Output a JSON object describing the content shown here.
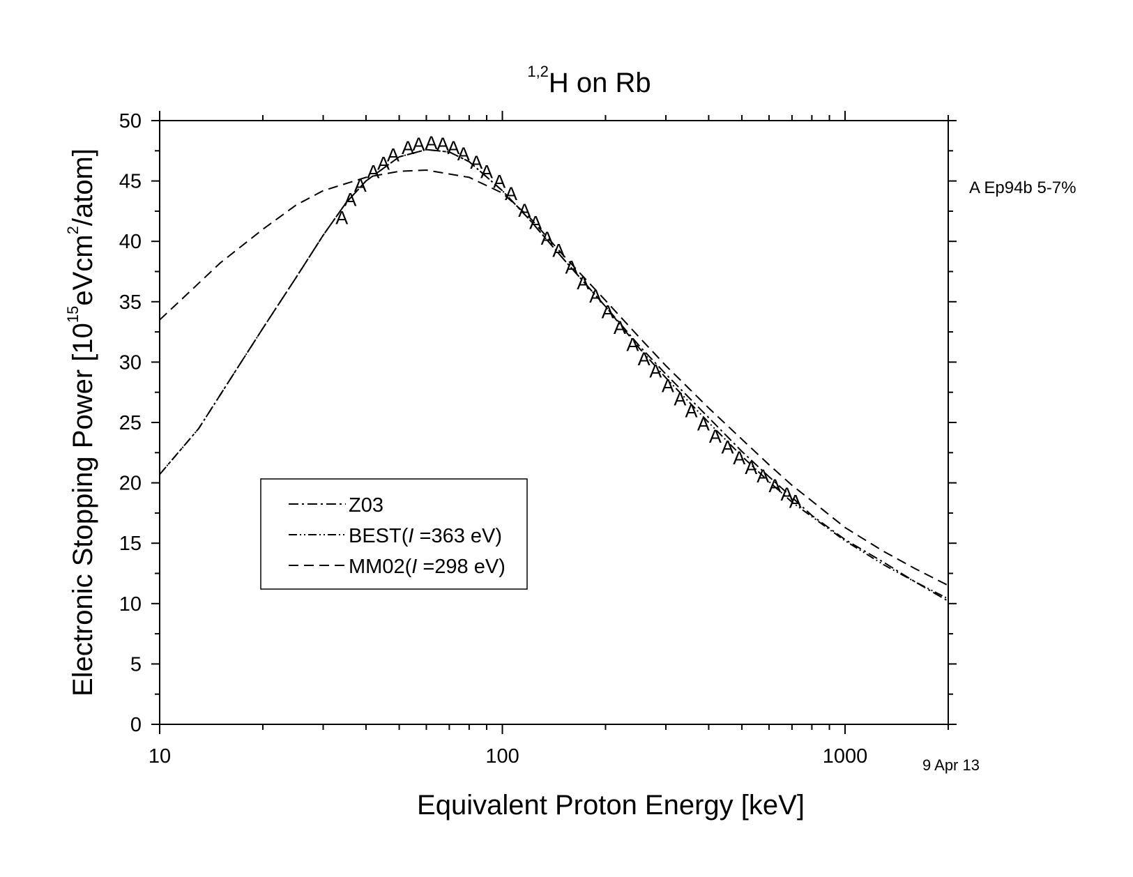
{
  "chart_data": {
    "type": "line",
    "title": {
      "sup": "1,2",
      "main": "H on Rb"
    },
    "xlabel": "Equivalent Proton Energy [keV]",
    "ylabel": {
      "before": "Electronic Stopping Power [10",
      "sup1": "15",
      "middle": "eVcm",
      "sup2": "2",
      "after": "/atom]"
    },
    "x_scale": "log",
    "xlim": [
      10,
      2000
    ],
    "ylim": [
      0,
      50
    ],
    "x_ticks": [
      {
        "value": 10,
        "label": "10"
      },
      {
        "value": 100,
        "label": "100"
      },
      {
        "value": 1000,
        "label": "1000"
      }
    ],
    "y_ticks": [
      {
        "value": 0,
        "label": "0"
      },
      {
        "value": 5,
        "label": "5"
      },
      {
        "value": 10,
        "label": "10"
      },
      {
        "value": 15,
        "label": "15"
      },
      {
        "value": 20,
        "label": "20"
      },
      {
        "value": 25,
        "label": "25"
      },
      {
        "value": 30,
        "label": "30"
      },
      {
        "value": 35,
        "label": "35"
      },
      {
        "value": 40,
        "label": "40"
      },
      {
        "value": 45,
        "label": "45"
      },
      {
        "value": 50,
        "label": "50"
      }
    ],
    "series": [
      {
        "name": "Z03",
        "dash": "14,5,3,5",
        "points": [
          [
            10,
            20.7
          ],
          [
            13,
            24.5
          ],
          [
            16,
            28.5
          ],
          [
            20,
            32.8
          ],
          [
            25,
            37
          ],
          [
            30,
            40.5
          ],
          [
            35,
            43.2
          ],
          [
            40,
            45
          ],
          [
            50,
            47
          ],
          [
            60,
            47.6
          ],
          [
            70,
            47.4
          ],
          [
            80,
            46.6
          ],
          [
            100,
            44.2
          ],
          [
            120,
            41.8
          ],
          [
            150,
            38.6
          ],
          [
            200,
            34.6
          ],
          [
            250,
            31.4
          ],
          [
            300,
            29
          ],
          [
            400,
            25.4
          ],
          [
            500,
            22.6
          ],
          [
            600,
            20.5
          ],
          [
            700,
            18.8
          ],
          [
            800,
            17.3
          ],
          [
            1000,
            15.3
          ],
          [
            1300,
            13.4
          ],
          [
            1600,
            11.8
          ],
          [
            2000,
            10.2
          ]
        ]
      },
      {
        "name": "BEST",
        "label_suffix": " =363 eV)",
        "dash": "12,4,2,4,2,4",
        "points": [
          [
            10,
            20.7
          ],
          [
            13,
            24.5
          ],
          [
            16,
            28.5
          ],
          [
            20,
            32.8
          ],
          [
            25,
            37
          ],
          [
            30,
            40.5
          ],
          [
            35,
            43.2
          ],
          [
            40,
            45
          ],
          [
            50,
            47
          ],
          [
            60,
            47.6
          ],
          [
            70,
            47.4
          ],
          [
            80,
            46.6
          ],
          [
            100,
            44.2
          ],
          [
            120,
            41.8
          ],
          [
            150,
            38.6
          ],
          [
            200,
            34.6
          ],
          [
            250,
            31.2
          ],
          [
            300,
            28.7
          ],
          [
            400,
            25
          ],
          [
            500,
            22.2
          ],
          [
            600,
            20.1
          ],
          [
            700,
            18.4
          ],
          [
            800,
            17.2
          ],
          [
            1000,
            15.2
          ],
          [
            1300,
            13.2
          ],
          [
            1600,
            11.8
          ],
          [
            2000,
            10.4
          ]
        ]
      },
      {
        "name": "MM02",
        "label_suffix": " =298 eV)",
        "dash": "14,8",
        "points": [
          [
            10,
            33.5
          ],
          [
            12,
            35.6
          ],
          [
            15,
            38.2
          ],
          [
            20,
            41
          ],
          [
            25,
            43
          ],
          [
            30,
            44.2
          ],
          [
            40,
            45.3
          ],
          [
            50,
            45.8
          ],
          [
            60,
            45.9
          ],
          [
            80,
            45.3
          ],
          [
            100,
            44
          ],
          [
            120,
            42
          ],
          [
            150,
            38.9
          ],
          [
            200,
            35.1
          ],
          [
            250,
            32.1
          ],
          [
            300,
            29.7
          ],
          [
            400,
            26.2
          ],
          [
            500,
            23.6
          ],
          [
            600,
            21.5
          ],
          [
            700,
            19.8
          ],
          [
            800,
            18.5
          ],
          [
            1000,
            16.3
          ],
          [
            1300,
            14.3
          ],
          [
            1600,
            12.9
          ],
          [
            2000,
            11.5
          ]
        ]
      }
    ],
    "data_points": {
      "name": "Ep94b",
      "marker": "A",
      "note": "5-7%",
      "points": [
        [
          34,
          42
        ],
        [
          36,
          43.5
        ],
        [
          38.5,
          44.7
        ],
        [
          42,
          45.8
        ],
        [
          45,
          46.5
        ],
        [
          48,
          47.2
        ],
        [
          53,
          47.8
        ],
        [
          57,
          48.1
        ],
        [
          62,
          48.2
        ],
        [
          67,
          48.1
        ],
        [
          72,
          47.8
        ],
        [
          77,
          47.3
        ],
        [
          84,
          46.6
        ],
        [
          90,
          45.8
        ],
        [
          98,
          45
        ],
        [
          106,
          44
        ],
        [
          116,
          42.6
        ],
        [
          125,
          41.6
        ],
        [
          135,
          40.3
        ],
        [
          146,
          39.3
        ],
        [
          159,
          37.9
        ],
        [
          172,
          36.6
        ],
        [
          187,
          35.5
        ],
        [
          203,
          34.2
        ],
        [
          220,
          32.9
        ],
        [
          240,
          31.5
        ],
        [
          259,
          30.3
        ],
        [
          280,
          29.3
        ],
        [
          304,
          28.1
        ],
        [
          330,
          27
        ],
        [
          356,
          26
        ],
        [
          386,
          24.9
        ],
        [
          418,
          23.9
        ],
        [
          454,
          23
        ],
        [
          491,
          22.1
        ],
        [
          532,
          21.3
        ],
        [
          576,
          20.6
        ],
        [
          624,
          19.8
        ],
        [
          676,
          19.1
        ],
        [
          716,
          18.5
        ]
      ]
    },
    "legend": {
      "position": "lower-left",
      "prefix": "(",
      "italic_symbol": "I",
      "entries": [
        "Z03",
        "BEST",
        "MM02"
      ]
    },
    "date_stamp": "9 Apr 13"
  }
}
